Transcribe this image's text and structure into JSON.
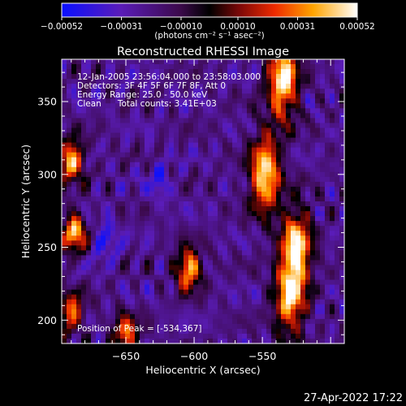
{
  "chart_data": {
    "type": "heatmap",
    "title": "Reconstructed RHESSI Image",
    "xlabel": "Heliocentric X (arcsec)",
    "ylabel": "Heliocentric Y (arcsec)",
    "xlim": [
      -697,
      -490
    ],
    "ylim": [
      184,
      379
    ],
    "x_ticks": [
      -650,
      -600,
      -550
    ],
    "x_tick_labels": [
      "−650",
      "−600",
      "−550"
    ],
    "y_ticks": [
      200,
      250,
      300,
      350
    ],
    "y_tick_labels": [
      "200",
      "250",
      "300",
      "350"
    ],
    "colorbar": {
      "min": -0.00052,
      "max": 0.00052,
      "colormap": "blue-purple-black-red-orange-yellow-white",
      "ticks": [
        -0.00052,
        -0.00031,
        -0.0001,
        0.0001,
        0.00031,
        0.00052
      ],
      "tick_labels": [
        "−0.00052",
        "−0.00031",
        "−0.00010",
        "0.00010",
        "0.00031",
        "0.00052"
      ],
      "units": "(photons cm⁻² s⁻¹ asec⁻²)"
    },
    "annotations": [
      "12-Jan-2005 23:56:04.000 to 23:58:03.000",
      "Detectors: 3F 4F 5F 6F 7F 8F, Att 0",
      "Energy Range: 25.0 - 50.0 keV",
      "Clean      Total counts: 3.41E+03"
    ],
    "peak_label": "Position of Peak = [-534,367]",
    "peak": {
      "x": -534,
      "y": 367
    },
    "footer_date": "27-Apr-2022 17:22",
    "grid": false,
    "bright_features": [
      {
        "name": "east-limb-source-upper",
        "x": -690,
        "y": 310,
        "intensity": 0.00045
      },
      {
        "name": "east-limb-source-middle",
        "x": -688,
        "y": 260,
        "intensity": 0.0004
      },
      {
        "name": "east-limb-source-lower",
        "x": -690,
        "y": 205,
        "intensity": 0.0003
      },
      {
        "name": "central-source",
        "x": -604,
        "y": 235,
        "intensity": 0.00045
      },
      {
        "name": "central-source-small",
        "x": -650,
        "y": 190,
        "intensity": 0.0003
      },
      {
        "name": "west-ribbon-top",
        "x": -535,
        "y": 365,
        "intensity": 0.00052
      },
      {
        "name": "west-ribbon-middle",
        "x": -548,
        "y": 300,
        "intensity": 0.0005
      },
      {
        "name": "west-ribbon-low",
        "x": -525,
        "y": 250,
        "intensity": 0.00045
      },
      {
        "name": "west-ribbon-bottom",
        "x": -530,
        "y": 215,
        "intensity": 0.0004
      },
      {
        "name": "east-negative-region",
        "x": -665,
        "y": 255,
        "intensity": -0.00045
      },
      {
        "name": "central-negative-region",
        "x": -625,
        "y": 295,
        "intensity": -0.0004
      }
    ]
  }
}
